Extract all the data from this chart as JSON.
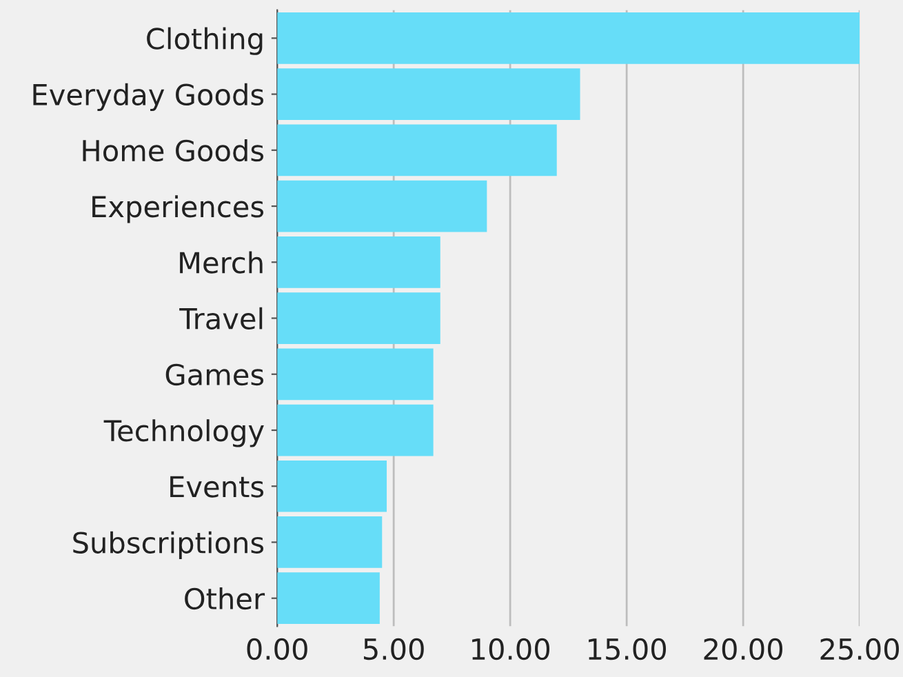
{
  "chart_data": {
    "type": "bar",
    "orientation": "horizontal",
    "categories": [
      "Clothing",
      "Everyday Goods",
      "Home Goods",
      "Experiences",
      "Merch",
      "Travel",
      "Games",
      "Technology",
      "Events",
      "Subscriptions",
      "Other"
    ],
    "values": [
      25.0,
      13.0,
      12.0,
      9.0,
      7.0,
      7.0,
      6.7,
      6.7,
      4.7,
      4.5,
      4.4
    ],
    "color": "#66ddf8",
    "xlim": [
      0,
      25
    ],
    "xticks": [
      {
        "value": 0,
        "label": "0.00"
      },
      {
        "value": 5,
        "label": "5.00"
      },
      {
        "value": 10,
        "label": "10.00"
      },
      {
        "value": 15,
        "label": "15.00"
      },
      {
        "value": 20,
        "label": "20.00"
      },
      {
        "value": 25,
        "label": "25.00"
      }
    ],
    "grid": "x"
  }
}
